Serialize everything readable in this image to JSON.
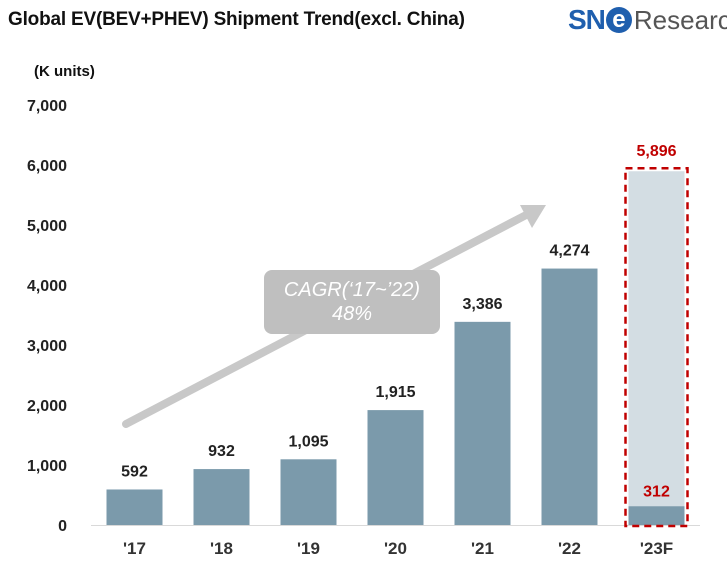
{
  "header": {
    "title": "Global EV(BEV+PHEV)  Shipment Trend(excl. China)",
    "brand_left": "SN",
    "brand_e": "e",
    "brand_right": "Research"
  },
  "annotation": {
    "cagr_line1": "CAGR(‘17~’22)",
    "cagr_line2": "48%"
  },
  "colors": {
    "bar": "#7b9aab",
    "forecast_bar": "#d3dde3",
    "forecast_border": "#c00000",
    "forecast_label": "#c00000",
    "arrow": "#c8c8c8"
  },
  "chart_data": {
    "type": "bar",
    "title": "Global EV(BEV+PHEV)  Shipment Trend(excl. China)",
    "ylabel": "(K units)",
    "xlabel": "",
    "ylim": [
      0,
      7000
    ],
    "yticks": [
      0,
      1000,
      2000,
      3000,
      4000,
      5000,
      6000,
      7000
    ],
    "ytick_labels": [
      "0",
      "1,000",
      "2,000",
      "3,000",
      "4,000",
      "5,000",
      "6,000",
      "7,000"
    ],
    "grid": false,
    "categories": [
      "'17",
      "'18",
      "'19",
      "'20",
      "'21",
      "'22",
      "'23F"
    ],
    "values": [
      592,
      932,
      1095,
      1915,
      3386,
      4274,
      5896
    ],
    "value_labels": [
      "592",
      "932",
      "1,095",
      "1,915",
      "3,386",
      "4,274",
      "5,896"
    ],
    "forecast": {
      "category": "'23F",
      "total": 5896,
      "total_label": "5,896",
      "actual": 312,
      "actual_label": "312"
    }
  }
}
